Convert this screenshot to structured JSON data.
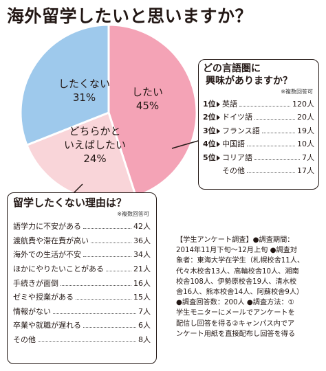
{
  "title": "海外留学したいと思いますか？",
  "chart_data": {
    "type": "pie",
    "title": "海外留学したいと思いますか？",
    "slices": [
      {
        "label": "したい",
        "value": 45,
        "pct_text": "45%",
        "color": "#f4a3b6"
      },
      {
        "label": "どちらかといえばしたい",
        "label_lines": [
          "どちらかと",
          "いえばしたい"
        ],
        "value": 24,
        "pct_text": "24%",
        "color": "#f9d5d9"
      },
      {
        "label": "したくない",
        "value": 31,
        "pct_text": "31%",
        "color": "#9ec9ec"
      }
    ]
  },
  "languages": {
    "heading_lines": [
      "どの言語圏に",
      "興味がありますか？"
    ],
    "note": "※複数回答可",
    "rows": [
      {
        "rank": "1位",
        "name": "英語",
        "count": "120人"
      },
      {
        "rank": "2位",
        "name": "ドイツ語",
        "count": "20人"
      },
      {
        "rank": "3位",
        "name": "フランス語",
        "count": "19人"
      },
      {
        "rank": "4位",
        "name": "中国語",
        "count": "10人"
      },
      {
        "rank": "5位",
        "name": "コリア語",
        "count": "7人"
      },
      {
        "rank": "",
        "name": "その他",
        "count": "17人"
      }
    ]
  },
  "reasons": {
    "heading": "留学したくない理由は？",
    "note": "※複数回答可",
    "rows": [
      {
        "name": "語学力に不安がある",
        "count": "42人"
      },
      {
        "name": "渡航費や滞在費が高い",
        "count": "36人"
      },
      {
        "name": "海外での生活が不安",
        "count": "34人"
      },
      {
        "name": "ほかにやりたいことがある",
        "count": "21人"
      },
      {
        "name": "手続きが面倒",
        "count": "16人"
      },
      {
        "name": "ゼミや授業がある",
        "count": "15人"
      },
      {
        "name": "情報がない",
        "count": "7人"
      },
      {
        "name": "卒業や就職が遅れる",
        "count": "6人"
      },
      {
        "name": "その他",
        "count": "8人"
      }
    ]
  },
  "survey": {
    "lines": [
      "【学生アンケート調査】●調査期間：",
      "2014年11月下旬～12月上旬 ●調査対",
      "象者：東海大学在学生（札幌校舎11人、",
      "代々木校舎13人、高輪校舎10人、湘南",
      "校舎108人、伊勢原校舎19人、清水校",
      "舎16人、熊本校舎14人、阿蘇校舎9人）",
      "●調査回答数：200人 ●調査方法：①",
      "学生モニターにメールでアンケートを",
      "配信し回答を得る②キャンパス内でア",
      "ンケート用紙を直接配布し回答を得る"
    ]
  }
}
